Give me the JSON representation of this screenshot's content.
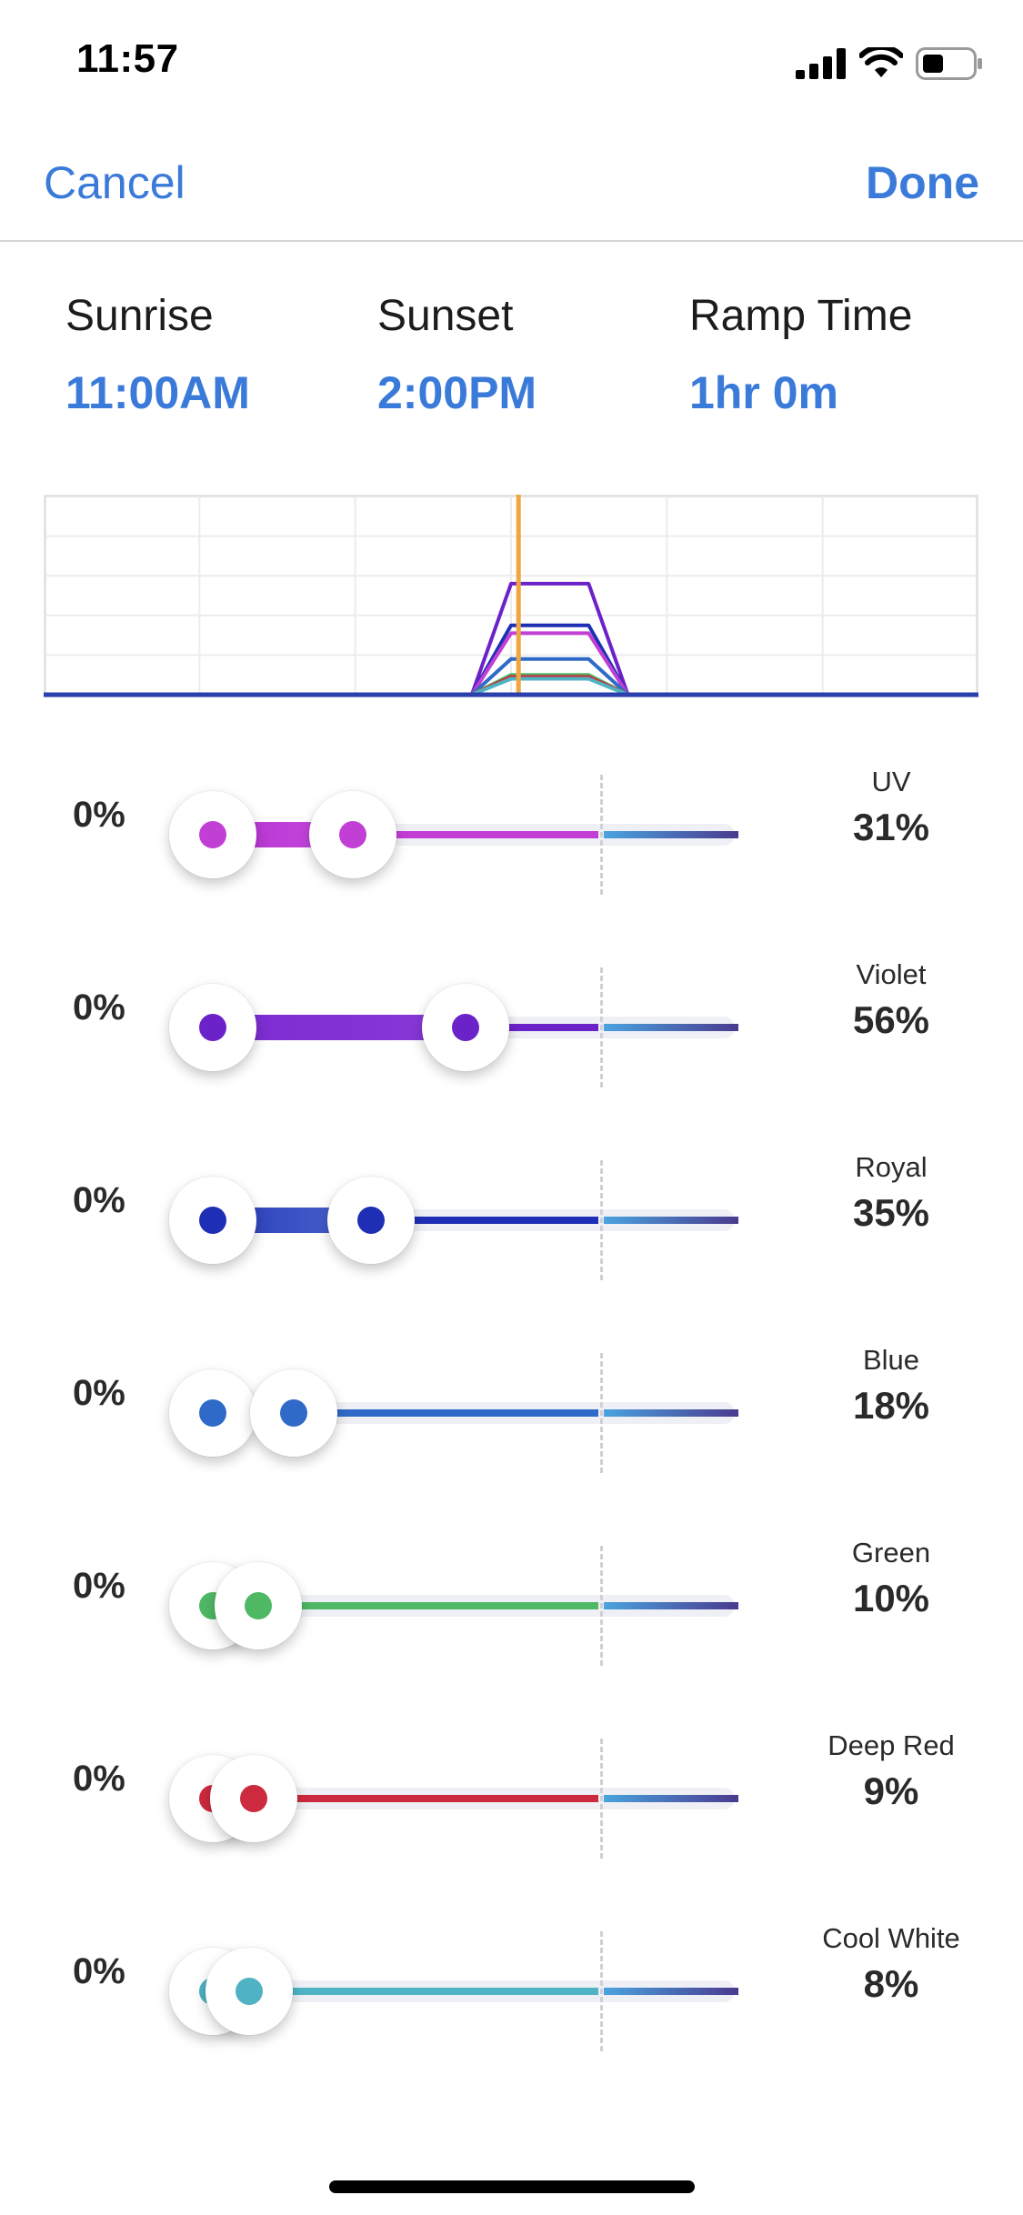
{
  "status_bar": {
    "time": "11:57"
  },
  "nav": {
    "cancel_label": "Cancel",
    "done_label": "Done"
  },
  "schedule": {
    "sunrise": {
      "label": "Sunrise",
      "value": "11:00AM"
    },
    "sunset": {
      "label": "Sunset",
      "value": "2:00PM"
    },
    "ramp": {
      "label": "Ramp Time",
      "value": "1hr 0m"
    }
  },
  "colors": {
    "accent": "#3a7ad9",
    "current_time_marker": "#f0a640",
    "baseline": "#2b3fae"
  },
  "chart": {
    "current_time_fraction": 0.508,
    "ramp_start_fraction": 0.458,
    "plateau_start_fraction": 0.5,
    "plateau_end_fraction": 0.583,
    "ramp_end_fraction": 0.625
  },
  "channels": [
    {
      "name": "UV",
      "min_label": "0%",
      "value_label": "31%",
      "min": 0,
      "max": 0.31,
      "color": "#c23fd6",
      "fill_from": "#b531d0",
      "fill_to": "#c84be0"
    },
    {
      "name": "Violet",
      "min_label": "0%",
      "value_label": "56%",
      "min": 0,
      "max": 0.56,
      "color": "#6b22c9",
      "fill_from": "#7a2ad0",
      "fill_to": "#8a3ad8"
    },
    {
      "name": "Royal",
      "min_label": "0%",
      "value_label": "35%",
      "min": 0,
      "max": 0.35,
      "color": "#1f2fb5",
      "fill_from": "#2a3ab8",
      "fill_to": "#4a68d0"
    },
    {
      "name": "Blue",
      "min_label": "0%",
      "value_label": "18%",
      "min": 0,
      "max": 0.18,
      "color": "#2f6ac8",
      "fill_from": "#3478c8",
      "fill_to": "#5a9ad8"
    },
    {
      "name": "Green",
      "min_label": "0%",
      "value_label": "10%",
      "min": 0,
      "max": 0.1,
      "color": "#4fb865",
      "fill_from": "#5ec07a",
      "fill_to": "#82d0a0"
    },
    {
      "name": "Deep Red",
      "min_label": "0%",
      "value_label": "9%",
      "min": 0,
      "max": 0.09,
      "color": "#cc2a3e",
      "fill_from": "#d04a55",
      "fill_to": "#e49a8a"
    },
    {
      "name": "Cool White",
      "min_label": "0%",
      "value_label": "8%",
      "min": 0,
      "max": 0.08,
      "color": "#4fb3c3",
      "fill_from": "#4fb3c3",
      "fill_to": "#6ac4d0"
    }
  ]
}
